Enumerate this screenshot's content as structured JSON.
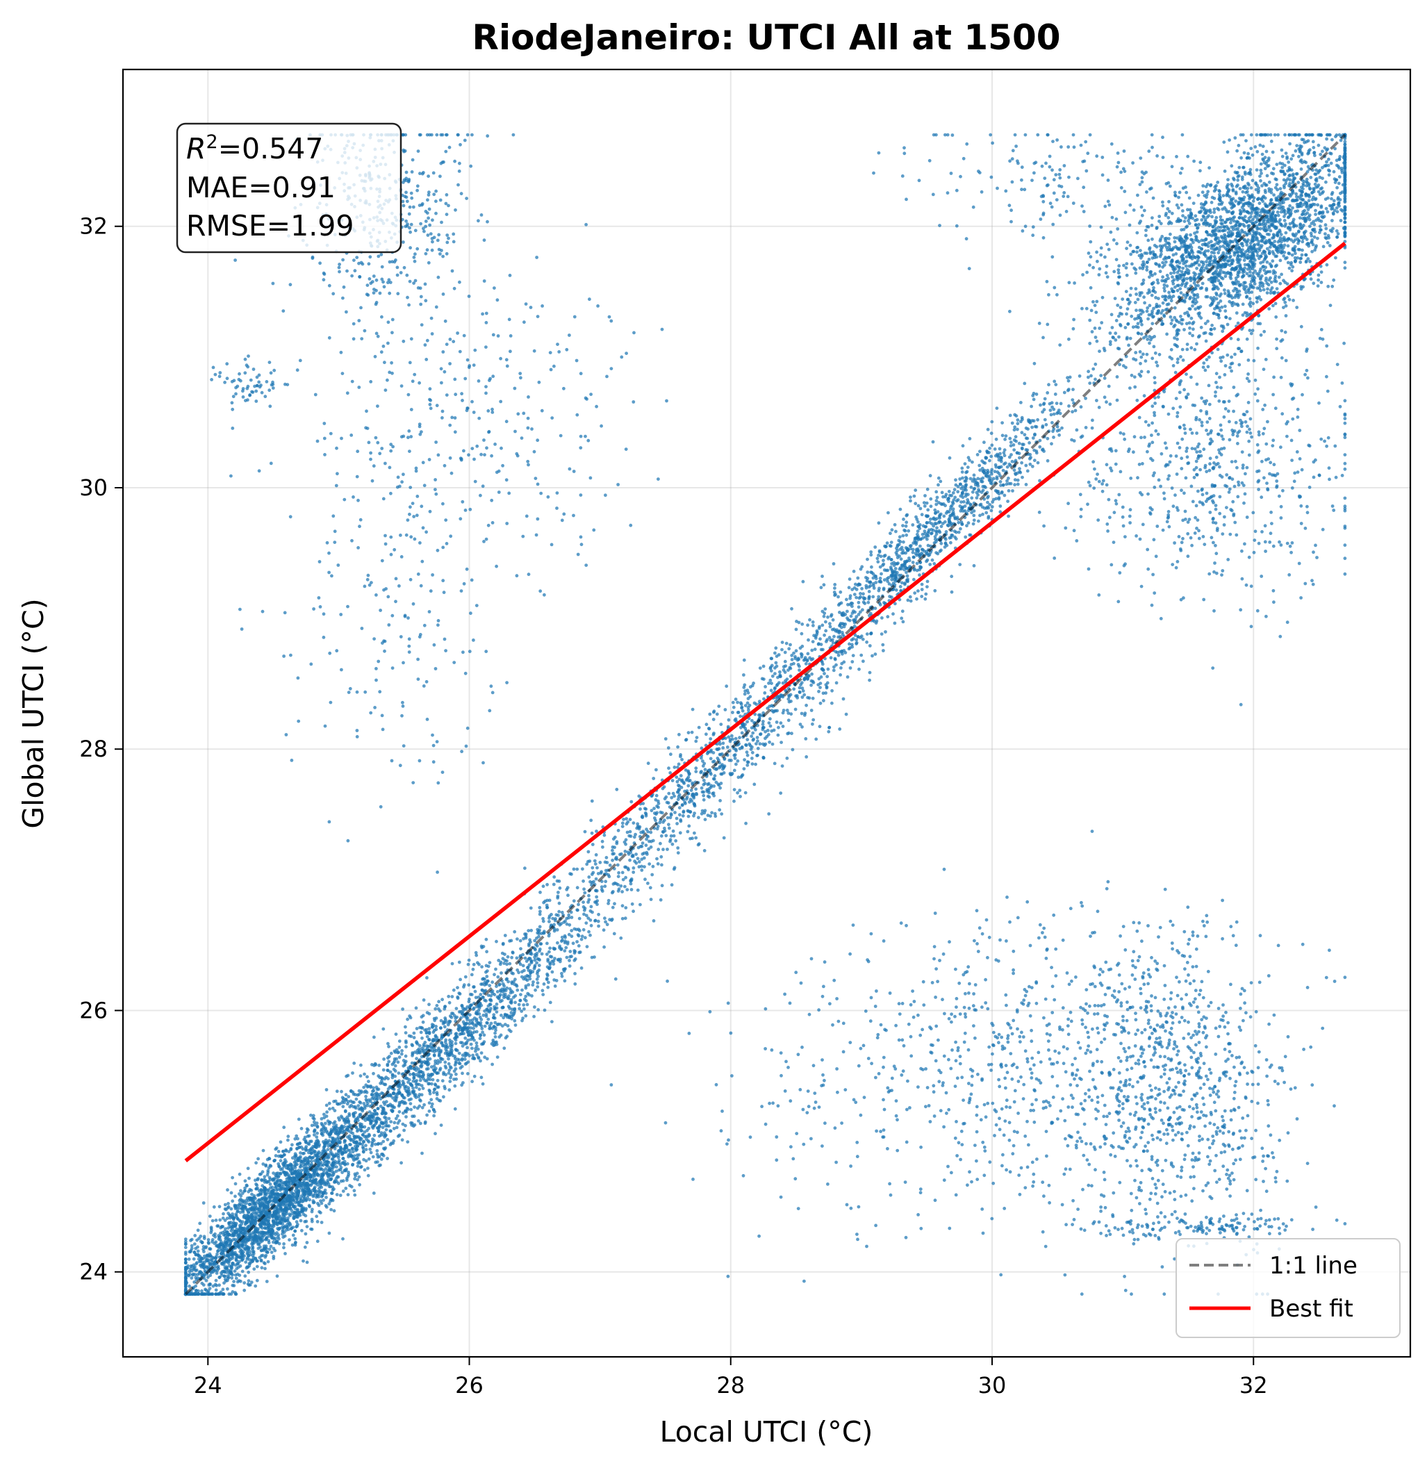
{
  "chart_data": {
    "type": "scatter",
    "title": "RiodeJaneiro: UTCI All at 1500",
    "xlabel": "Local UTCI (°C)",
    "ylabel": "Global UTCI (°C)",
    "xlim": [
      23.35,
      33.2
    ],
    "ylim": [
      23.35,
      33.2
    ],
    "xticks": [
      24,
      26,
      28,
      30,
      32
    ],
    "yticks": [
      24,
      26,
      28,
      30,
      32
    ],
    "grid": true,
    "legend_position": "lower-right",
    "stats": {
      "r2_label": "R",
      "r2_sup": "2",
      "r2_value": "=0.547",
      "mae": "MAE=0.91",
      "rmse": "RMSE=1.99"
    },
    "series": [
      {
        "name": "",
        "kind": "scatter",
        "color": "#1f77b4",
        "clusters": [
          {
            "cx": 24.5,
            "cy": 24.5,
            "sx": 0.42,
            "sy": 0.42,
            "n": 2600,
            "corr": 0.9
          },
          {
            "cx": 25.8,
            "cy": 25.7,
            "sx": 0.65,
            "sy": 0.65,
            "n": 1700,
            "corr": 0.95
          },
          {
            "cx": 27.9,
            "cy": 27.9,
            "sx": 0.7,
            "sy": 0.7,
            "n": 1100,
            "corr": 0.95
          },
          {
            "cx": 29.6,
            "cy": 29.7,
            "sx": 0.55,
            "sy": 0.55,
            "n": 1100,
            "corr": 0.95
          },
          {
            "cx": 31.9,
            "cy": 31.9,
            "sx": 0.5,
            "sy": 0.4,
            "n": 2600,
            "corr": 0.6
          },
          {
            "cx": 31.7,
            "cy": 30.2,
            "sx": 0.55,
            "sy": 0.55,
            "n": 700,
            "corr": 0.0
          },
          {
            "cx": 25.4,
            "cy": 32.1,
            "sx": 0.32,
            "sy": 0.45,
            "n": 420,
            "corr": 0.0
          },
          {
            "cx": 26.0,
            "cy": 30.4,
            "sx": 0.6,
            "sy": 0.6,
            "n": 330,
            "corr": 0.0
          },
          {
            "cx": 25.5,
            "cy": 28.9,
            "sx": 0.5,
            "sy": 0.6,
            "n": 150,
            "corr": 0.0
          },
          {
            "cx": 24.3,
            "cy": 30.8,
            "sx": 0.12,
            "sy": 0.1,
            "n": 60,
            "corr": 0.0
          },
          {
            "cx": 31.4,
            "cy": 25.4,
            "sx": 0.45,
            "sy": 0.6,
            "n": 900,
            "corr": 0.0
          },
          {
            "cx": 30.2,
            "cy": 25.7,
            "sx": 0.6,
            "sy": 0.55,
            "n": 450,
            "corr": 0.0
          },
          {
            "cx": 29.0,
            "cy": 25.3,
            "sx": 0.7,
            "sy": 0.6,
            "n": 170,
            "corr": 0.0
          },
          {
            "cx": 31.6,
            "cy": 24.35,
            "sx": 0.45,
            "sy": 0.04,
            "n": 120,
            "corr": 0.0
          },
          {
            "cx": 30.5,
            "cy": 32.35,
            "sx": 0.55,
            "sy": 0.25,
            "n": 160,
            "corr": 0.0
          }
        ]
      },
      {
        "name": "1:1 line",
        "kind": "line",
        "color": "#000000",
        "opacity": 0.5,
        "dash": "dashed",
        "x": [
          23.83,
          32.7
        ],
        "y": [
          23.83,
          32.7
        ]
      },
      {
        "name": "Best fit",
        "kind": "line",
        "color": "#ff0000",
        "x": [
          23.83,
          32.7
        ],
        "y": [
          24.85,
          31.87
        ]
      }
    ]
  }
}
